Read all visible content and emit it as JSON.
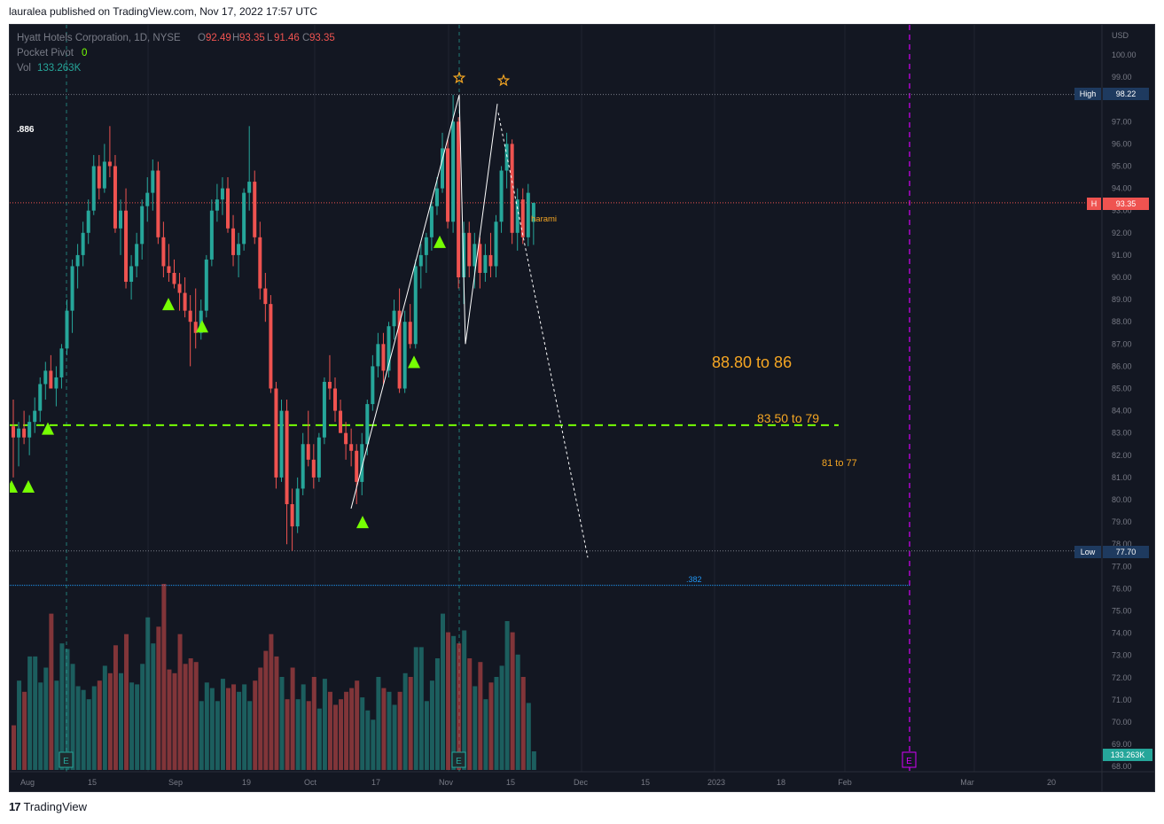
{
  "published": "lauralea published on TradingView.com, Nov 17, 2022 17:57 UTC",
  "footer": {
    "logo": "17",
    "brand": "TradingView"
  },
  "legend": {
    "symbol": "Hyatt Hotels Corporation, 1D, NYSE",
    "o_label": "O",
    "o": "92.49",
    "h_label": "H",
    "h": "93.35",
    "l_label": "L",
    "l": "91.46",
    "c_label": "C",
    "c": "93.35",
    "pp_label": "Pocket Pivot",
    "pp_value": "0",
    "vol_label": "Vol",
    "vol_value": "133.263K"
  },
  "colors": {
    "up": "#26a69a",
    "down": "#ef5350",
    "bg": "#131722",
    "orange": "#f5a623",
    "green": "#76ff03",
    "purple": "#a020f0",
    "grid": "#1f2330"
  },
  "axis": {
    "currency": "USD",
    "high_label": "High",
    "high_value": "98.22",
    "last_tag": "H",
    "last_value": "93.35",
    "low_label": "Low",
    "low_value": "77.70",
    "vol_value": "133.263K",
    "y_ticks": [
      "100.00",
      "99.00",
      "97.00",
      "96.00",
      "95.00",
      "94.00",
      "93.00",
      "92.00",
      "91.00",
      "90.00",
      "89.00",
      "88.00",
      "87.00",
      "86.00",
      "85.00",
      "84.00",
      "83.00",
      "82.00",
      "81.00",
      "80.00",
      "79.00",
      "78.00",
      "77.00",
      "76.00",
      "75.00",
      "74.00",
      "73.00",
      "72.00",
      "71.00",
      "70.00",
      "69.00",
      "68.00"
    ],
    "x_ticks": [
      "Aug",
      "15",
      "Sep",
      "19",
      "Oct",
      "17",
      "Nov",
      "15",
      "Dec",
      "15",
      "2023",
      "18",
      "Feb",
      "Mar",
      "20"
    ]
  },
  "annotations": {
    "fib886": ".886",
    "fib382": ".382",
    "harami": "harami",
    "target1": "88.80 to 86",
    "target2": "83.50 to 79",
    "target3": "81 to 77",
    "earnings": "E"
  },
  "chart_data": {
    "type": "candlestick",
    "title": "Hyatt Hotels Corporation, 1D, NYSE",
    "ylim": [
      68,
      100.9
    ],
    "candles_ohlc": [
      [
        83.3,
        84.5,
        81.0,
        82.8
      ],
      [
        82.8,
        83.5,
        81.5,
        83.2
      ],
      [
        83.2,
        84.0,
        82.5,
        82.8
      ],
      [
        82.8,
        83.8,
        82.0,
        83.5
      ],
      [
        83.5,
        84.6,
        83.0,
        84.0
      ],
      [
        84.0,
        85.5,
        83.5,
        85.2
      ],
      [
        85.2,
        86.2,
        84.5,
        85.8
      ],
      [
        85.8,
        86.5,
        85.0,
        85.0
      ],
      [
        85.0,
        86.0,
        84.2,
        85.5
      ],
      [
        85.5,
        87.0,
        85.0,
        86.8
      ],
      [
        86.8,
        89.0,
        86.5,
        88.5
      ],
      [
        88.5,
        90.8,
        87.5,
        90.5
      ],
      [
        90.5,
        91.5,
        89.5,
        91.0
      ],
      [
        91.0,
        92.5,
        90.5,
        92.0
      ],
      [
        92.0,
        93.5,
        91.5,
        93.0
      ],
      [
        93.0,
        95.5,
        92.8,
        95.0
      ],
      [
        95.0,
        95.5,
        93.5,
        94.0
      ],
      [
        94.0,
        96.0,
        93.8,
        95.2
      ],
      [
        95.2,
        96.8,
        94.5,
        95.0
      ],
      [
        95.0,
        95.5,
        92.0,
        92.2
      ],
      [
        92.2,
        93.5,
        91.0,
        93.0
      ],
      [
        93.0,
        94.0,
        89.5,
        89.8
      ],
      [
        89.8,
        91.0,
        89.0,
        90.5
      ],
      [
        90.5,
        92.0,
        90.0,
        91.5
      ],
      [
        91.5,
        93.5,
        90.8,
        93.2
      ],
      [
        93.2,
        94.5,
        92.5,
        93.8
      ],
      [
        93.8,
        95.3,
        93.0,
        94.8
      ],
      [
        94.8,
        95.2,
        91.5,
        91.8
      ],
      [
        91.8,
        92.5,
        90.0,
        90.5
      ],
      [
        90.5,
        91.5,
        89.8,
        90.2
      ],
      [
        90.2,
        90.8,
        89.5,
        89.7
      ],
      [
        89.7,
        90.2,
        88.5,
        89.3
      ],
      [
        89.3,
        90.0,
        88.2,
        88.5
      ],
      [
        88.5,
        89.2,
        86.0,
        88.0
      ],
      [
        88.0,
        89.5,
        86.8,
        87.5
      ],
      [
        87.5,
        89.0,
        87.2,
        88.5
      ],
      [
        88.5,
        91.0,
        88.2,
        90.8
      ],
      [
        90.8,
        93.5,
        90.5,
        93.0
      ],
      [
        93.0,
        94.2,
        92.5,
        93.5
      ],
      [
        93.5,
        94.5,
        92.8,
        94.0
      ],
      [
        94.0,
        94.5,
        92.0,
        92.2
      ],
      [
        92.2,
        92.8,
        90.5,
        91.0
      ],
      [
        91.0,
        92.0,
        90.0,
        91.5
      ],
      [
        91.5,
        94.0,
        91.2,
        93.8
      ],
      [
        93.8,
        96.8,
        93.0,
        94.3
      ],
      [
        94.3,
        94.8,
        91.5,
        91.8
      ],
      [
        91.8,
        92.5,
        89.0,
        89.5
      ],
      [
        89.5,
        90.2,
        88.0,
        88.8
      ],
      [
        88.8,
        89.2,
        84.8,
        85.0
      ],
      [
        85.0,
        85.3,
        80.5,
        81.0
      ],
      [
        81.0,
        84.5,
        80.8,
        84.0
      ],
      [
        84.0,
        84.5,
        78.0,
        79.8
      ],
      [
        79.8,
        80.5,
        77.7,
        78.8
      ],
      [
        78.8,
        81.0,
        78.5,
        80.5
      ],
      [
        80.5,
        83.0,
        80.2,
        82.5
      ],
      [
        82.5,
        84.0,
        81.5,
        81.8
      ],
      [
        81.8,
        82.5,
        80.5,
        81.0
      ],
      [
        81.0,
        83.0,
        80.8,
        82.8
      ],
      [
        82.8,
        85.5,
        82.5,
        85.3
      ],
      [
        85.3,
        86.5,
        84.5,
        85.0
      ],
      [
        85.0,
        85.5,
        83.5,
        84.0
      ],
      [
        84.0,
        84.5,
        83.0,
        83.0
      ],
      [
        83.0,
        83.5,
        81.8,
        82.5
      ],
      [
        82.5,
        83.2,
        81.5,
        82.2
      ],
      [
        82.2,
        82.5,
        79.8,
        80.8
      ],
      [
        80.8,
        83.0,
        80.2,
        82.5
      ],
      [
        82.5,
        84.5,
        82.0,
        84.3
      ],
      [
        84.3,
        86.5,
        84.0,
        86.0
      ],
      [
        86.0,
        87.5,
        85.5,
        87.0
      ],
      [
        87.0,
        87.5,
        85.2,
        85.8
      ],
      [
        85.8,
        88.0,
        85.5,
        87.8
      ],
      [
        87.8,
        89.0,
        87.2,
        88.5
      ],
      [
        88.5,
        89.5,
        84.8,
        85.0
      ],
      [
        85.0,
        88.5,
        84.8,
        88.0
      ],
      [
        88.0,
        88.8,
        86.8,
        87.0
      ],
      [
        87.0,
        90.8,
        86.8,
        90.5
      ],
      [
        90.5,
        91.5,
        89.5,
        91.0
      ],
      [
        91.0,
        92.0,
        90.2,
        91.8
      ],
      [
        91.8,
        93.5,
        91.2,
        93.2
      ],
      [
        93.2,
        94.5,
        92.8,
        94.0
      ],
      [
        94.0,
        96.5,
        93.8,
        95.8
      ],
      [
        95.8,
        96.2,
        92.2,
        92.5
      ],
      [
        92.5,
        98.2,
        92.0,
        97.0
      ],
      [
        97.0,
        97.2,
        89.5,
        90.0
      ],
      [
        90.0,
        92.5,
        88.8,
        92.0
      ],
      [
        92.0,
        92.5,
        90.0,
        90.5
      ],
      [
        90.5,
        92.0,
        89.5,
        91.5
      ],
      [
        91.5,
        91.8,
        89.5,
        90.2
      ],
      [
        90.2,
        91.5,
        89.8,
        91.0
      ],
      [
        91.0,
        92.0,
        90.0,
        90.5
      ],
      [
        90.5,
        92.8,
        90.0,
        92.5
      ],
      [
        92.5,
        95.0,
        92.0,
        94.8
      ],
      [
        94.8,
        96.5,
        94.0,
        96.0
      ],
      [
        96.0,
        96.2,
        91.5,
        92.0
      ],
      [
        92.0,
        94.0,
        91.2,
        93.5
      ],
      [
        93.5,
        94.0,
        91.5,
        91.8
      ],
      [
        91.8,
        94.2,
        91.4,
        93.8
      ],
      [
        92.49,
        93.35,
        91.46,
        93.35
      ]
    ],
    "volume_rel": [
      0.24,
      0.48,
      0.42,
      0.61,
      0.61,
      0.47,
      0.55,
      0.84,
      0.48,
      0.68,
      0.65,
      0.57,
      0.45,
      0.43,
      0.38,
      0.45,
      0.48,
      0.56,
      0.52,
      0.67,
      0.52,
      0.73,
      0.47,
      0.46,
      0.57,
      0.82,
      0.68,
      0.77,
      1.0,
      0.54,
      0.52,
      0.73,
      0.57,
      0.6,
      0.58,
      0.37,
      0.47,
      0.44,
      0.37,
      0.49,
      0.44,
      0.46,
      0.42,
      0.46,
      0.37,
      0.48,
      0.55,
      0.64,
      0.73,
      0.61,
      0.5,
      0.38,
      0.55,
      0.38,
      0.46,
      0.37,
      0.5,
      0.33,
      0.49,
      0.42,
      0.35,
      0.38,
      0.42,
      0.44,
      0.48,
      0.39,
      0.32,
      0.27,
      0.5,
      0.44,
      0.42,
      0.35,
      0.42,
      0.52,
      0.5,
      0.66,
      0.66,
      0.37,
      0.48,
      0.6,
      0.84,
      0.74,
      0.72,
      0.68,
      0.75,
      0.6,
      0.45,
      0.58,
      0.38,
      0.47,
      0.5,
      0.56,
      0.8,
      0.74,
      0.62,
      0.5,
      0.36,
      0.1
    ],
    "horizontal_levels": {
      "high": 98.22,
      "last": 93.35,
      "low": 77.7,
      "fib_382": 76.15,
      "support": 83.35
    }
  }
}
